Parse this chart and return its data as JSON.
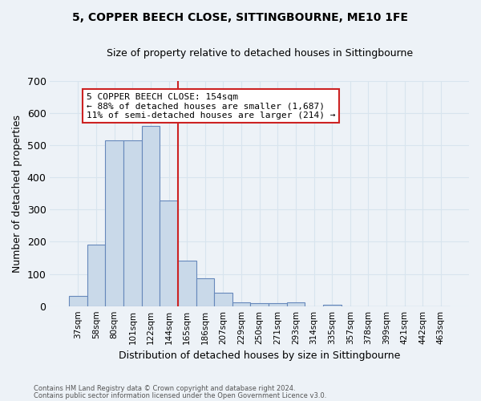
{
  "title": "5, COPPER BEECH CLOSE, SITTINGBOURNE, ME10 1FE",
  "subtitle": "Size of property relative to detached houses in Sittingbourne",
  "xlabel": "Distribution of detached houses by size in Sittingbourne",
  "ylabel": "Number of detached properties",
  "footnote1": "Contains HM Land Registry data © Crown copyright and database right 2024.",
  "footnote2": "Contains public sector information licensed under the Open Government Licence v3.0.",
  "bar_labels": [
    "37sqm",
    "58sqm",
    "80sqm",
    "101sqm",
    "122sqm",
    "144sqm",
    "165sqm",
    "186sqm",
    "207sqm",
    "229sqm",
    "250sqm",
    "271sqm",
    "293sqm",
    "314sqm",
    "335sqm",
    "357sqm",
    "378sqm",
    "399sqm",
    "421sqm",
    "442sqm",
    "463sqm"
  ],
  "bar_values": [
    32,
    190,
    515,
    515,
    560,
    328,
    142,
    87,
    42,
    12,
    8,
    8,
    11,
    0,
    5,
    0,
    0,
    0,
    0,
    0,
    0
  ],
  "bar_color": "#c9d9e9",
  "bar_edge_color": "#6688bb",
  "grid_color": "#d8e4ee",
  "background_color": "#edf2f7",
  "vline_color": "#cc2222",
  "annotation_text": "5 COPPER BEECH CLOSE: 154sqm\n← 88% of detached houses are smaller (1,687)\n11% of semi-detached houses are larger (214) →",
  "annotation_box_color": "#ffffff",
  "annotation_box_edge": "#cc2222",
  "ylim": [
    0,
    700
  ],
  "yticks": [
    0,
    100,
    200,
    300,
    400,
    500,
    600,
    700
  ]
}
